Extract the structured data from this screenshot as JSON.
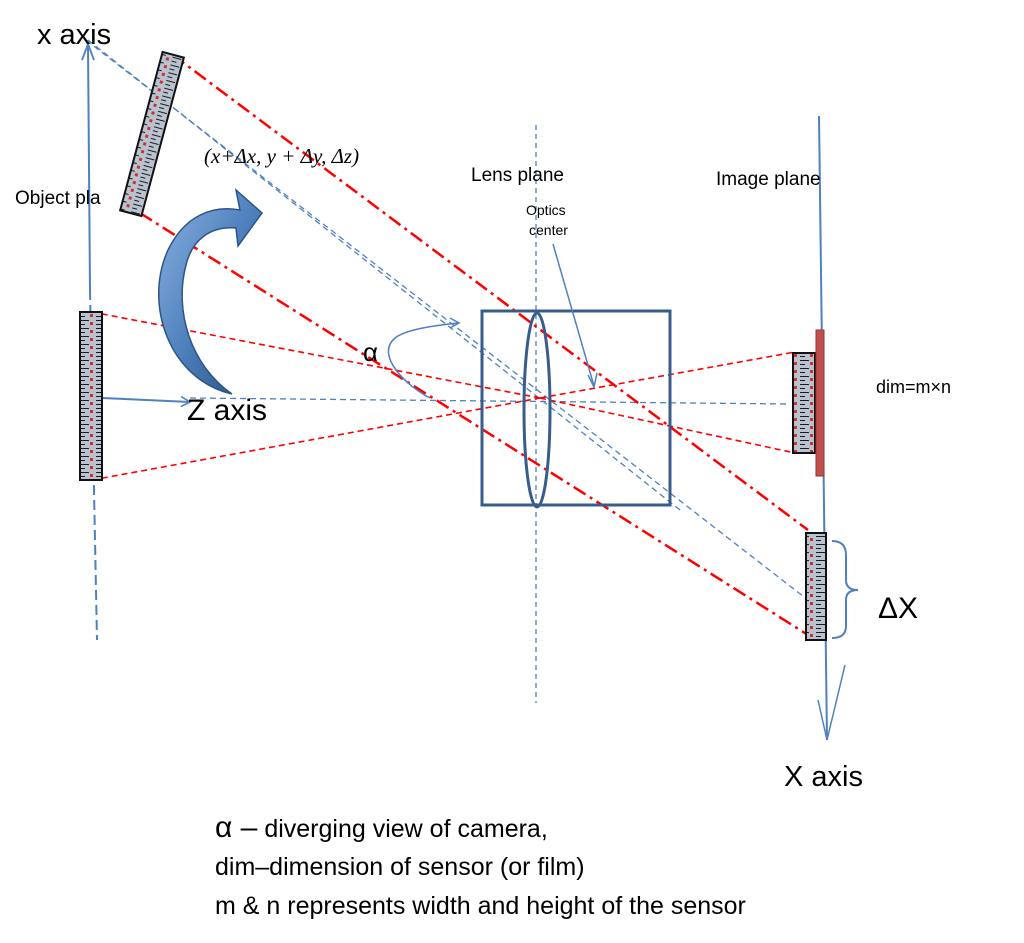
{
  "labels": {
    "x_axis": "x axis",
    "object_plane": "Object pla",
    "object_coord": "(x+Δx, y + Δy, Δz)",
    "lens_plane": "Lens plane",
    "optics_center_line1": "Optics",
    "optics_center_line2": "center",
    "image_plane": "Image plane",
    "alpha": "α",
    "z_axis": "Z axis",
    "dim": "dim=m×n",
    "delta_x": "ΔX",
    "capital_x_axis": "X axis"
  },
  "legend": {
    "alpha_symbol": "α –",
    "alpha_text": " diverging view of camera,",
    "dim_line": "dim–dimension of sensor (or film)",
    "mn_line": "m & n represents width and height of the sensor"
  },
  "colors": {
    "axis_blue": "#4f81bd",
    "lens_navy": "#385d8a",
    "ray_red": "#ff0000",
    "sensor_red": "#c0504d",
    "arrow_blue": "#3a6fb0"
  }
}
